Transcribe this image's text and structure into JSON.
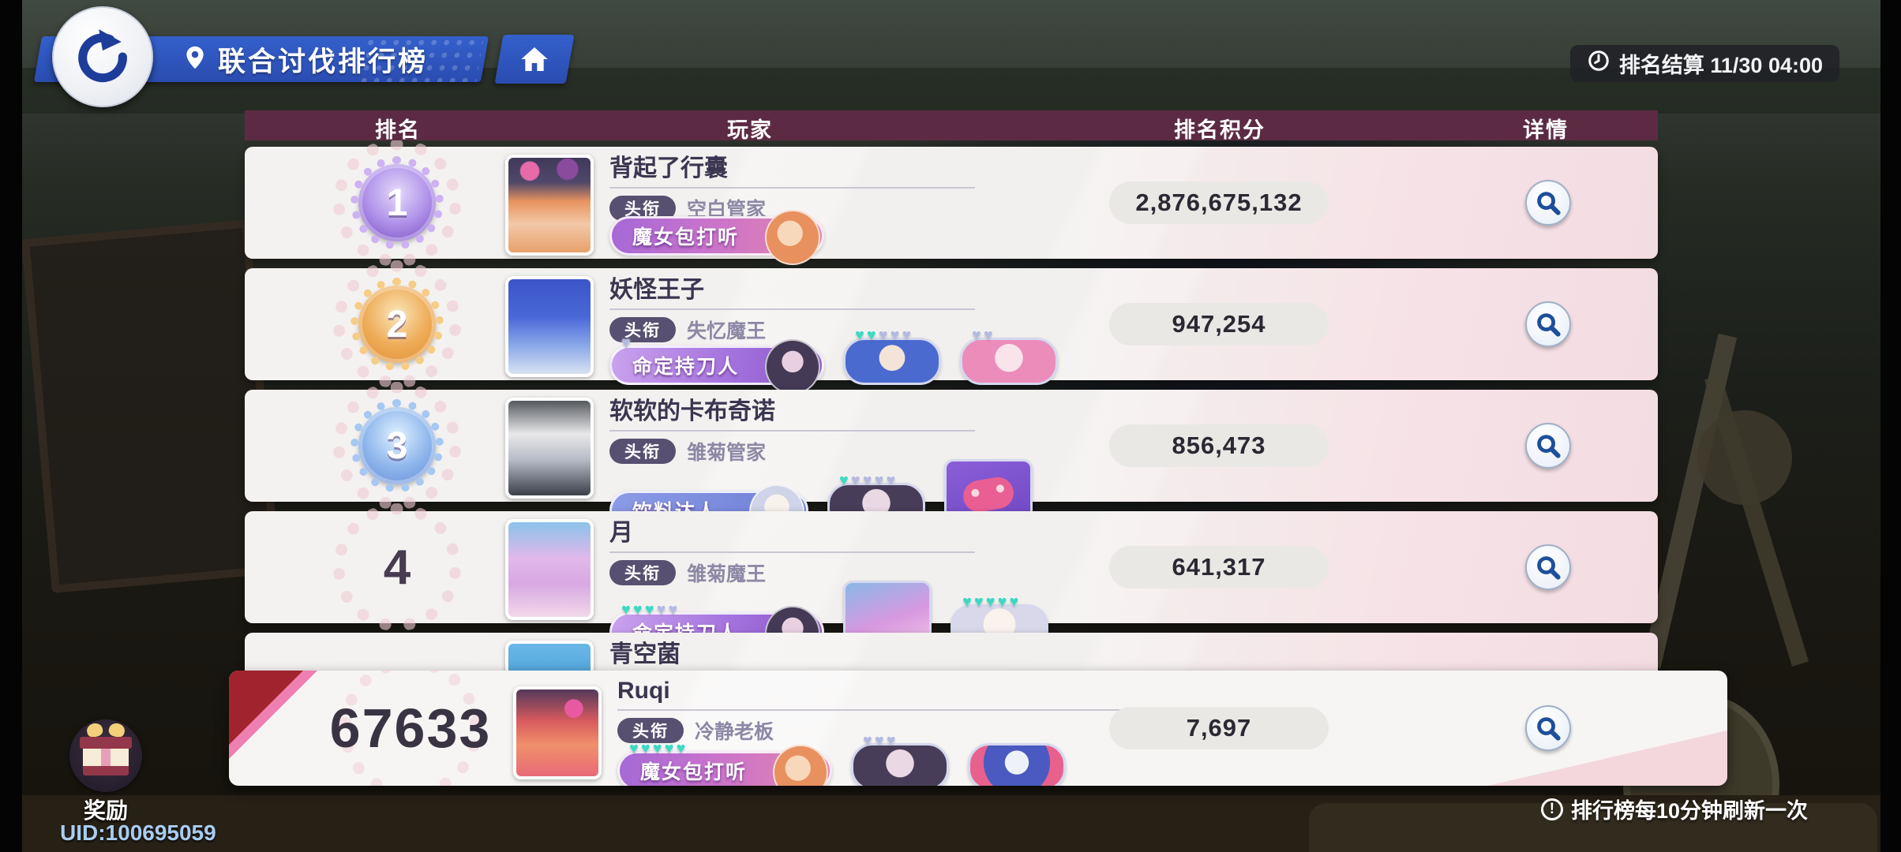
{
  "top_bar": {
    "back_icon": "circular-back-arrow",
    "location_icon": "map-pin",
    "title": "联合讨伐排行榜",
    "home_icon": "home",
    "clock_icon": "clock",
    "settlement_label": "排名结算 11/30 04:00"
  },
  "table": {
    "headers": {
      "rank": "排名",
      "player": "玩家",
      "score": "排名积分",
      "detail": "详情"
    }
  },
  "labels": {
    "title": "头衔"
  },
  "rows": [
    {
      "rank": "1",
      "medal": "purple",
      "name": "背起了行囊",
      "title": "空白管家",
      "badge": {
        "text": "魔女包打听",
        "style": "pink",
        "hearts": []
      },
      "partners": [],
      "score": "2,876,675,132"
    },
    {
      "rank": "2",
      "medal": "gold",
      "name": "妖怪王子",
      "title": "失忆魔王",
      "badge": {
        "text": "命定持刀人",
        "style": "purple",
        "hearts": [
          "lavender"
        ]
      },
      "partners": [
        {
          "kind": "pill",
          "art": "blue-chibi",
          "hearts": [
            "teal",
            "teal",
            "lavender",
            "lavender",
            "lavender"
          ]
        },
        {
          "kind": "pill",
          "art": "pink-chibi",
          "hearts": [
            "lavender",
            "lavender"
          ]
        }
      ],
      "score": "947,254"
    },
    {
      "rank": "3",
      "medal": "blue",
      "name": "软软的卡布奇诺",
      "title": "雏菊管家",
      "badge": {
        "text": "饮料达人",
        "style": "blue",
        "hearts": []
      },
      "partners": [
        {
          "kind": "pill",
          "art": "dark-chibi",
          "hearts": [
            "teal",
            "lavender",
            "lavender",
            "lavender",
            "lavender"
          ]
        },
        {
          "kind": "tile",
          "art": "controller",
          "hearts": []
        }
      ],
      "score": "856,473"
    },
    {
      "rank": "4",
      "medal": "plain",
      "name": "月",
      "title": "雏菊魔王",
      "badge": {
        "text": "命定持刀人",
        "style": "purple",
        "hearts": [
          "teal",
          "teal",
          "teal",
          "lavender",
          "lavender"
        ]
      },
      "partners": [
        {
          "kind": "tile",
          "art": "pink-hair",
          "hearts": []
        },
        {
          "kind": "pill",
          "art": "white-chibi",
          "hearts": [
            "teal",
            "teal",
            "teal",
            "teal",
            "teal"
          ]
        }
      ],
      "score": "641,317"
    },
    {
      "name": "青空菌",
      "partial": true
    }
  ],
  "self_row": {
    "rank": "67633",
    "name": "Ruqi",
    "title": "冷静老板",
    "badge": {
      "text": "魔女包打听",
      "style": "pink",
      "hearts": [
        "teal",
        "teal",
        "teal",
        "teal",
        "teal"
      ]
    },
    "partners": [
      {
        "kind": "pill",
        "art": "dark-chibi",
        "hearts": [
          "lavender",
          "lavender",
          "lavender"
        ]
      },
      {
        "kind": "pill",
        "art": "blue-chibi-pink",
        "hearts": []
      }
    ],
    "score": "7,697"
  },
  "footer": {
    "rewards_label": "奖励",
    "uid": "UID:100695059",
    "info_icon": "exclamation-circle",
    "refresh_note": "排行榜每10分钟刷新一次"
  },
  "colors": {
    "banner_blue": "#2d51b3",
    "header_plum": "#5c2b43",
    "row_pink": "#f5dee3",
    "ribbon_red": "#a1232e",
    "ribbon_pink": "#ee7fb0",
    "magnifier_blue": "#1d4f9b",
    "heart_teal": "#3fd8c4",
    "heart_lavender": "#b4badf",
    "uid_blue": "#a9cdf0"
  }
}
